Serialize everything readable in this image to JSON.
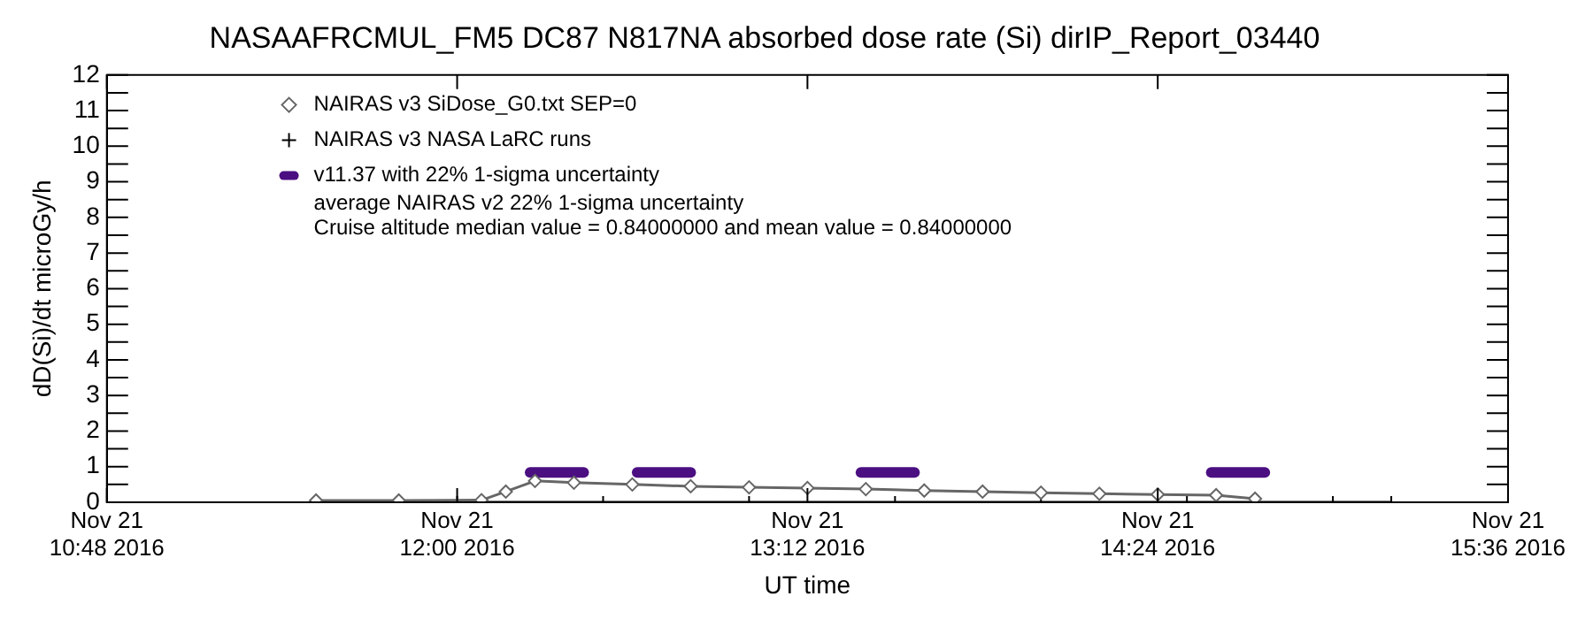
{
  "chart_data": {
    "type": "line",
    "title": "NASAAFRCMUL_FM5 DC87 N817NA absorbed dose rate (Si) dirIP_Report_03440",
    "xlabel": "UT time",
    "ylabel": "dD(Si)/dt microGy/h",
    "xlim": [
      "2016-11-21T10:48",
      "2016-11-21T15:36"
    ],
    "xticks": [
      {
        "value": "2016-11-21T10:48",
        "label": "Nov 21\n10:48 2016"
      },
      {
        "value": "2016-11-21T12:00",
        "label": "Nov 21\n12:00 2016"
      },
      {
        "value": "2016-11-21T13:12",
        "label": "Nov 21\n13:12 2016"
      },
      {
        "value": "2016-11-21T14:24",
        "label": "Nov 21\n14:24 2016"
      },
      {
        "value": "2016-11-21T15:36",
        "label": "Nov 21\n15:36 2016"
      }
    ],
    "ylim": [
      0,
      12
    ],
    "yticks": [
      0,
      1,
      2,
      3,
      4,
      5,
      6,
      7,
      8,
      9,
      10,
      11,
      12
    ],
    "grid": false,
    "legend": "top left",
    "series": [
      {
        "name": "NAIRAS v3 SiDose_G0.txt SEP=0",
        "color": "#666666",
        "marker": "diamond",
        "x": [
          "2016-11-21T11:31",
          "2016-11-21T11:48",
          "2016-11-21T12:05",
          "2016-11-21T12:10",
          "2016-11-21T12:16",
          "2016-11-21T12:24",
          "2016-11-21T12:36",
          "2016-11-21T12:48",
          "2016-11-21T13:00",
          "2016-11-21T13:12",
          "2016-11-21T13:24",
          "2016-11-21T13:36",
          "2016-11-21T13:48",
          "2016-11-21T14:00",
          "2016-11-21T14:12",
          "2016-11-21T14:24",
          "2016-11-21T14:36",
          "2016-11-21T14:44"
        ],
        "values": [
          0.05,
          0.05,
          0.06,
          0.3,
          0.6,
          0.55,
          0.5,
          0.45,
          0.42,
          0.4,
          0.37,
          0.33,
          0.3,
          0.27,
          0.24,
          0.22,
          0.2,
          0.1
        ]
      },
      {
        "name": "NAIRAS v3 NASA LaRC runs",
        "color": "#000000",
        "marker": "cross",
        "x": [
          "2016-11-21T11:31",
          "2016-11-21T12:00",
          "2016-11-21T12:30",
          "2016-11-21T13:00",
          "2016-11-21T13:30",
          "2016-11-21T14:00",
          "2016-11-21T14:30",
          "2016-11-21T15:00",
          "2016-11-21T15:12"
        ],
        "values": [
          0,
          0,
          0,
          0,
          0,
          0,
          0,
          0,
          0
        ]
      },
      {
        "name": "v11.37 with 22% 1-sigma uncertainty",
        "color": "#4b0f82",
        "marker": "none",
        "x": [
          "2016-11-21T12:15",
          "2016-11-21T12:26"
        ],
        "values": [
          0.84,
          0.84
        ]
      },
      {
        "color": "#4b0f82",
        "marker": "none",
        "x": [
          "2016-11-21T12:37",
          "2016-11-21T12:48"
        ],
        "values": [
          0.84,
          0.84
        ]
      },
      {
        "color": "#4b0f82",
        "marker": "none",
        "x": [
          "2016-11-21T13:23",
          "2016-11-21T13:34"
        ],
        "values": [
          0.84,
          0.84
        ]
      },
      {
        "color": "#4b0f82",
        "marker": "none",
        "x": [
          "2016-11-21T14:35",
          "2016-11-21T14:46"
        ],
        "values": [
          0.84,
          0.84
        ]
      }
    ],
    "annotations": [
      "average NAIRAS v2 22% 1-sigma uncertainty",
      "Cruise altitude median value = 0.84000000 and mean value = 0.84000000"
    ]
  }
}
